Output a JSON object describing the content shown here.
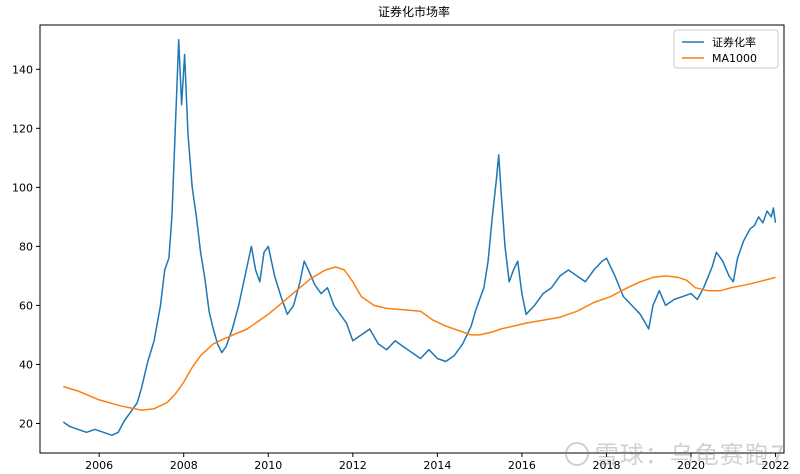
{
  "chart_data": {
    "type": "line",
    "title": "证券化市场率",
    "xlabel": "",
    "ylabel": "",
    "xlim": [
      2004.6,
      2022.2
    ],
    "ylim": [
      10,
      155
    ],
    "x_ticks": [
      2006,
      2008,
      2010,
      2012,
      2014,
      2016,
      2018,
      2020,
      2022
    ],
    "y_ticks": [
      20,
      40,
      60,
      80,
      100,
      120,
      140
    ],
    "grid": false,
    "legend_position": "top-right",
    "series": [
      {
        "name": "证券化率",
        "color": "#1f77b4",
        "points": [
          [
            2005.15,
            20.5
          ],
          [
            2005.3,
            19
          ],
          [
            2005.5,
            18
          ],
          [
            2005.7,
            17
          ],
          [
            2005.9,
            18
          ],
          [
            2006.1,
            17
          ],
          [
            2006.3,
            16
          ],
          [
            2006.45,
            17
          ],
          [
            2006.6,
            21
          ],
          [
            2006.75,
            24
          ],
          [
            2006.9,
            27
          ],
          [
            2007.0,
            32
          ],
          [
            2007.15,
            41
          ],
          [
            2007.3,
            48
          ],
          [
            2007.45,
            60
          ],
          [
            2007.55,
            72
          ],
          [
            2007.65,
            76
          ],
          [
            2007.72,
            90
          ],
          [
            2007.8,
            120
          ],
          [
            2007.88,
            150
          ],
          [
            2007.95,
            128
          ],
          [
            2008.02,
            145
          ],
          [
            2008.1,
            118
          ],
          [
            2008.2,
            100
          ],
          [
            2008.3,
            90
          ],
          [
            2008.4,
            78
          ],
          [
            2008.5,
            69
          ],
          [
            2008.6,
            58
          ],
          [
            2008.7,
            52
          ],
          [
            2008.8,
            47
          ],
          [
            2008.9,
            44
          ],
          [
            2009.0,
            46
          ],
          [
            2009.15,
            52
          ],
          [
            2009.3,
            60
          ],
          [
            2009.45,
            70
          ],
          [
            2009.6,
            80
          ],
          [
            2009.7,
            72
          ],
          [
            2009.8,
            68
          ],
          [
            2009.9,
            78
          ],
          [
            2010.0,
            80
          ],
          [
            2010.15,
            70
          ],
          [
            2010.3,
            63
          ],
          [
            2010.45,
            57
          ],
          [
            2010.6,
            60
          ],
          [
            2010.75,
            68
          ],
          [
            2010.85,
            75
          ],
          [
            2010.95,
            72
          ],
          [
            2011.1,
            67
          ],
          [
            2011.25,
            64
          ],
          [
            2011.4,
            66
          ],
          [
            2011.55,
            60
          ],
          [
            2011.7,
            57
          ],
          [
            2011.85,
            54
          ],
          [
            2012.0,
            48
          ],
          [
            2012.2,
            50
          ],
          [
            2012.4,
            52
          ],
          [
            2012.6,
            47
          ],
          [
            2012.8,
            45
          ],
          [
            2013.0,
            48
          ],
          [
            2013.2,
            46
          ],
          [
            2013.4,
            44
          ],
          [
            2013.6,
            42
          ],
          [
            2013.8,
            45
          ],
          [
            2014.0,
            42
          ],
          [
            2014.2,
            41
          ],
          [
            2014.4,
            43
          ],
          [
            2014.6,
            47
          ],
          [
            2014.8,
            53
          ],
          [
            2014.9,
            58
          ],
          [
            2015.0,
            62
          ],
          [
            2015.1,
            66
          ],
          [
            2015.2,
            75
          ],
          [
            2015.3,
            90
          ],
          [
            2015.4,
            103
          ],
          [
            2015.45,
            111
          ],
          [
            2015.5,
            100
          ],
          [
            2015.6,
            80
          ],
          [
            2015.7,
            68
          ],
          [
            2015.8,
            72
          ],
          [
            2015.9,
            75
          ],
          [
            2016.0,
            64
          ],
          [
            2016.1,
            57
          ],
          [
            2016.3,
            60
          ],
          [
            2016.5,
            64
          ],
          [
            2016.7,
            66
          ],
          [
            2016.9,
            70
          ],
          [
            2017.1,
            72
          ],
          [
            2017.3,
            70
          ],
          [
            2017.5,
            68
          ],
          [
            2017.7,
            72
          ],
          [
            2017.9,
            75
          ],
          [
            2018.0,
            76
          ],
          [
            2018.2,
            70
          ],
          [
            2018.4,
            63
          ],
          [
            2018.6,
            60
          ],
          [
            2018.8,
            57
          ],
          [
            2019.0,
            52
          ],
          [
            2019.1,
            60
          ],
          [
            2019.25,
            65
          ],
          [
            2019.4,
            60
          ],
          [
            2019.6,
            62
          ],
          [
            2019.8,
            63
          ],
          [
            2020.0,
            64
          ],
          [
            2020.15,
            62
          ],
          [
            2020.3,
            66
          ],
          [
            2020.5,
            73
          ],
          [
            2020.6,
            78
          ],
          [
            2020.75,
            75
          ],
          [
            2020.9,
            70
          ],
          [
            2021.0,
            68
          ],
          [
            2021.1,
            76
          ],
          [
            2021.25,
            82
          ],
          [
            2021.4,
            86
          ],
          [
            2021.5,
            87
          ],
          [
            2021.6,
            90
          ],
          [
            2021.7,
            88
          ],
          [
            2021.8,
            92
          ],
          [
            2021.9,
            90
          ],
          [
            2021.95,
            93
          ],
          [
            2022.0,
            88
          ]
        ]
      },
      {
        "name": "MA1000",
        "color": "#ff7f0e",
        "points": [
          [
            2005.15,
            32.5
          ],
          [
            2005.5,
            31
          ],
          [
            2006.0,
            28
          ],
          [
            2006.5,
            26
          ],
          [
            2007.0,
            24.5
          ],
          [
            2007.3,
            25
          ],
          [
            2007.6,
            27
          ],
          [
            2007.8,
            30
          ],
          [
            2008.0,
            34
          ],
          [
            2008.2,
            39
          ],
          [
            2008.4,
            43
          ],
          [
            2008.7,
            47
          ],
          [
            2009.0,
            49
          ],
          [
            2009.5,
            52
          ],
          [
            2010.0,
            57
          ],
          [
            2010.5,
            63
          ],
          [
            2011.0,
            69
          ],
          [
            2011.35,
            72
          ],
          [
            2011.6,
            73
          ],
          [
            2011.8,
            72
          ],
          [
            2012.0,
            68
          ],
          [
            2012.2,
            63
          ],
          [
            2012.5,
            60
          ],
          [
            2012.8,
            59
          ],
          [
            2013.2,
            58.5
          ],
          [
            2013.6,
            58
          ],
          [
            2013.9,
            55
          ],
          [
            2014.2,
            53
          ],
          [
            2014.5,
            51.5
          ],
          [
            2014.8,
            50
          ],
          [
            2015.0,
            50
          ],
          [
            2015.3,
            51
          ],
          [
            2015.5,
            52
          ],
          [
            2015.8,
            53
          ],
          [
            2016.1,
            54
          ],
          [
            2016.5,
            55
          ],
          [
            2016.9,
            56
          ],
          [
            2017.3,
            58
          ],
          [
            2017.7,
            61
          ],
          [
            2018.1,
            63
          ],
          [
            2018.5,
            66
          ],
          [
            2018.8,
            68
          ],
          [
            2019.1,
            69.5
          ],
          [
            2019.4,
            70
          ],
          [
            2019.7,
            69.5
          ],
          [
            2019.9,
            68.5
          ],
          [
            2020.1,
            66
          ],
          [
            2020.4,
            65
          ],
          [
            2020.7,
            65
          ],
          [
            2020.95,
            66
          ],
          [
            2021.3,
            67
          ],
          [
            2021.6,
            68
          ],
          [
            2022.0,
            69.5
          ]
        ]
      }
    ]
  },
  "watermark": {
    "text": "雪球：乌龟赛跑7"
  }
}
